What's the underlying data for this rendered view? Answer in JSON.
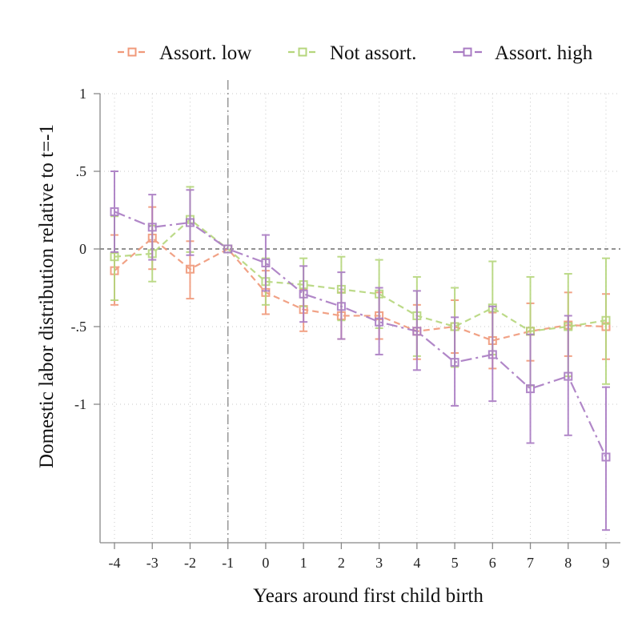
{
  "chart_data": {
    "type": "line",
    "xlabel": "Years around first child birth",
    "ylabel": "Domestic labor distribution relative to t=-1",
    "x": [
      -4,
      -3,
      -2,
      -1,
      0,
      1,
      2,
      3,
      4,
      5,
      6,
      7,
      8,
      9
    ],
    "xlim": [
      -4,
      9
    ],
    "ylim": [
      -1.9,
      1
    ],
    "yticks": [
      1,
      0.5,
      0,
      -0.5,
      -1
    ],
    "ytick_labels": [
      "1",
      ".5",
      "0",
      "-.5",
      "-1"
    ],
    "xtick_labels": [
      "-4",
      "-3",
      "-2",
      "-1",
      "0",
      "1",
      "2",
      "3",
      "4",
      "5",
      "6",
      "7",
      "8",
      "9"
    ],
    "grid": true,
    "reference_lines": {
      "x": -1,
      "y": 0
    },
    "legend_position": "top",
    "series": [
      {
        "name": "Assort. low",
        "color": "#f0997a",
        "dash": "dash",
        "values": [
          -0.14,
          0.07,
          -0.13,
          0.0,
          -0.28,
          -0.39,
          -0.43,
          -0.43,
          -0.53,
          -0.5,
          -0.59,
          -0.53,
          -0.49,
          -0.5
        ],
        "lower": [
          -0.36,
          -0.13,
          -0.32,
          0.0,
          -0.42,
          -0.53,
          -0.58,
          -0.58,
          -0.71,
          -0.67,
          -0.77,
          -0.72,
          -0.69,
          -0.71
        ],
        "upper": [
          0.09,
          0.27,
          0.05,
          0.0,
          -0.14,
          -0.26,
          -0.28,
          -0.28,
          -0.36,
          -0.33,
          -0.41,
          -0.35,
          -0.28,
          -0.29
        ]
      },
      {
        "name": "Not assort.",
        "color": "#b5d67c",
        "dash": "dash",
        "values": [
          -0.05,
          -0.03,
          0.19,
          0.0,
          -0.21,
          -0.23,
          -0.26,
          -0.29,
          -0.43,
          -0.5,
          -0.38,
          -0.53,
          -0.5,
          -0.46
        ],
        "lower": [
          -0.33,
          -0.21,
          -0.02,
          0.0,
          -0.36,
          -0.37,
          -0.46,
          -0.51,
          -0.69,
          -0.76,
          -0.68,
          -0.88,
          -0.82,
          -0.87
        ],
        "upper": [
          0.21,
          0.15,
          0.4,
          0.0,
          -0.06,
          -0.06,
          -0.05,
          -0.07,
          -0.18,
          -0.25,
          -0.08,
          -0.18,
          -0.16,
          -0.06
        ]
      },
      {
        "name": "Assort. high",
        "color": "#a97bc3",
        "dash": "dashdot",
        "values": [
          0.24,
          0.14,
          0.17,
          0.0,
          -0.09,
          -0.29,
          -0.37,
          -0.47,
          -0.53,
          -0.73,
          -0.68,
          -0.9,
          -0.82,
          -1.34
        ],
        "lower": [
          -0.02,
          -0.07,
          -0.04,
          0.0,
          -0.27,
          -0.47,
          -0.58,
          -0.68,
          -0.78,
          -1.01,
          -0.98,
          -1.25,
          -1.2,
          -1.81
        ],
        "upper": [
          0.5,
          0.35,
          0.38,
          0.0,
          0.09,
          -0.11,
          -0.15,
          -0.25,
          -0.27,
          -0.44,
          -0.37,
          -0.55,
          -0.43,
          -0.89
        ]
      }
    ]
  }
}
